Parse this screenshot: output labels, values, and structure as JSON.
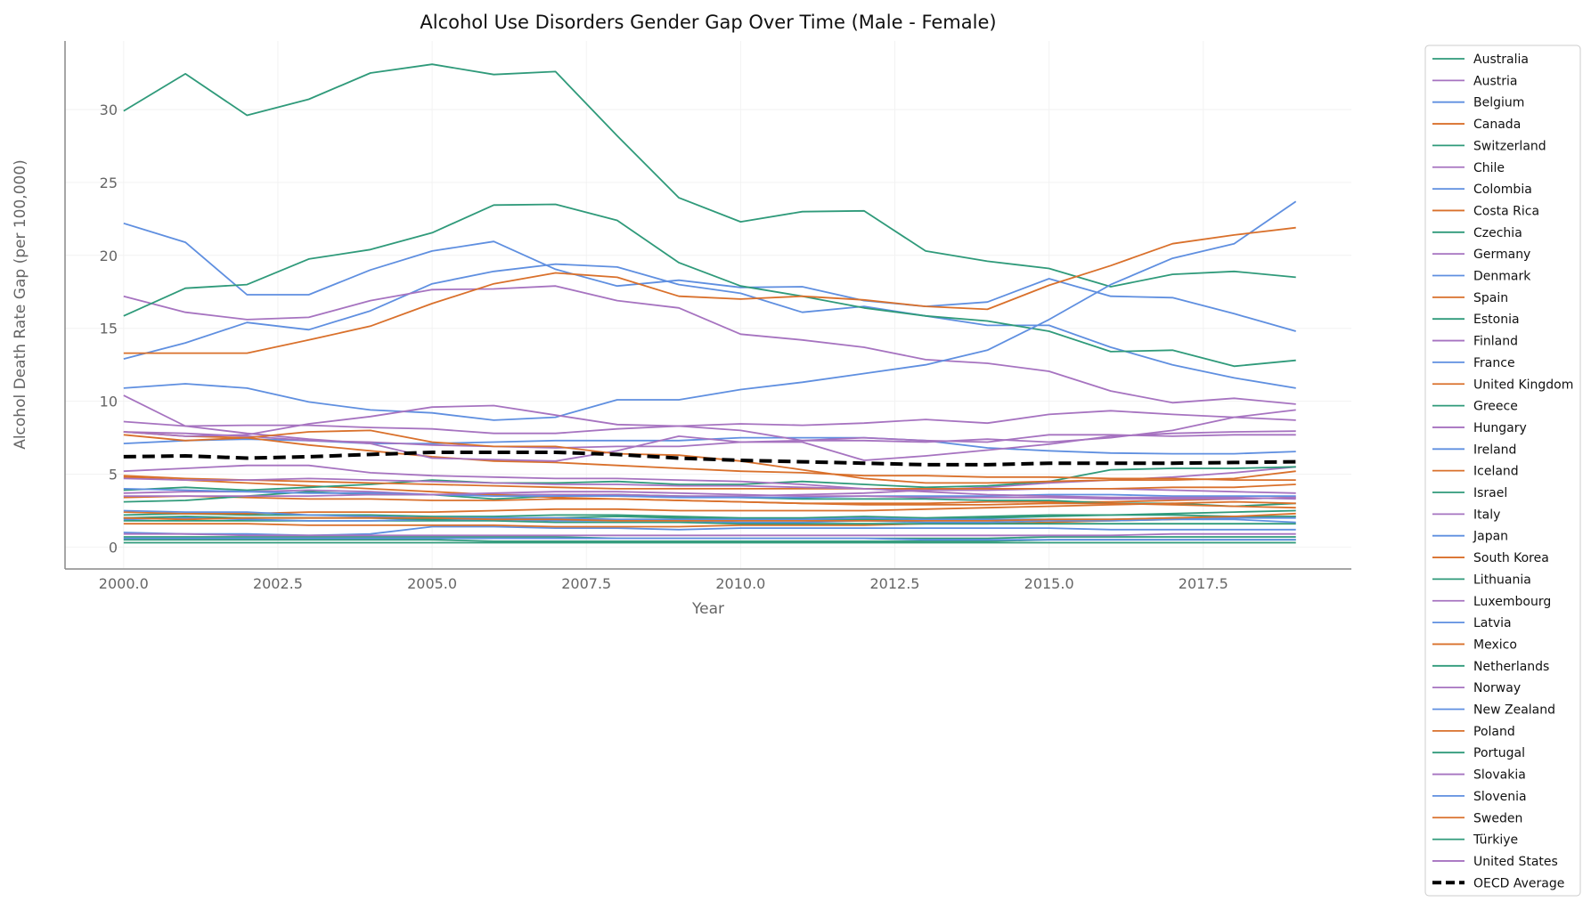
{
  "chart_data": {
    "type": "line",
    "title": "Alcohol Use Disorders Gender Gap Over Time (Male - Female)",
    "xlabel": "Year",
    "ylabel": "Alcohol Death Rate Gap (per 100,000)",
    "xlim": [
      1999.05,
      2019.9
    ],
    "ylim": [
      -1.5,
      34.7
    ],
    "x_ticks": [
      "2000.0",
      "2002.5",
      "2005.0",
      "2007.5",
      "2010.0",
      "2012.5",
      "2015.0",
      "2017.5"
    ],
    "y_ticks": [
      "0",
      "5",
      "10",
      "15",
      "20",
      "25",
      "30"
    ],
    "grid": true,
    "legend_position": "outside-right",
    "palette": [
      "#2f9a7a",
      "#a673c0",
      "#5f8fe0",
      "#d9702b"
    ],
    "x": [
      2000,
      2001,
      2002,
      2003,
      2004,
      2005,
      2006,
      2007,
      2008,
      2009,
      2010,
      2011,
      2012,
      2013,
      2014,
      2015,
      2016,
      2017,
      2018,
      2019
    ],
    "series": [
      {
        "name": "Australia",
        "values": [
          2.2,
          2.3,
          2.2,
          2.2,
          2.2,
          2.1,
          2.1,
          2.2,
          2.2,
          2.1,
          2.0,
          2.0,
          2.1,
          2.0,
          2.1,
          2.2,
          2.2,
          2.3,
          2.4,
          2.5
        ]
      },
      {
        "name": "Austria",
        "values": [
          8.6,
          8.3,
          8.35,
          8.35,
          8.2,
          8.1,
          7.8,
          7.8,
          8.1,
          8.3,
          8.45,
          8.35,
          8.5,
          8.75,
          8.5,
          9.1,
          9.35,
          9.1,
          8.9,
          8.7
        ]
      },
      {
        "name": "Belgium",
        "values": [
          7.1,
          7.3,
          7.4,
          7.3,
          7.1,
          7.1,
          7.2,
          7.3,
          7.3,
          7.3,
          7.5,
          7.5,
          7.5,
          7.3,
          6.8,
          6.6,
          6.45,
          6.4,
          6.4,
          6.55
        ]
      },
      {
        "name": "Canada",
        "values": [
          3.4,
          3.5,
          3.4,
          3.3,
          3.3,
          3.2,
          3.2,
          3.3,
          3.3,
          3.2,
          3.1,
          3.0,
          3.0,
          3.0,
          3.1,
          3.1,
          3.1,
          3.2,
          3.3,
          3.4
        ]
      },
      {
        "name": "Switzerland",
        "values": [
          3.1,
          3.2,
          3.5,
          3.8,
          3.6,
          3.6,
          3.3,
          3.5,
          3.6,
          3.5,
          3.4,
          3.3,
          3.3,
          3.3,
          3.2,
          3.2,
          3.0,
          3.0,
          2.8,
          3.0
        ]
      },
      {
        "name": "Chile",
        "values": [
          3.7,
          3.8,
          3.8,
          3.9,
          3.8,
          3.6,
          3.6,
          3.6,
          3.6,
          3.5,
          3.5,
          3.6,
          3.7,
          3.9,
          4.1,
          4.4,
          4.6,
          4.8,
          5.1,
          5.5
        ]
      },
      {
        "name": "Colombia",
        "values": [
          12.9,
          14.0,
          15.4,
          14.9,
          16.2,
          18.05,
          18.9,
          19.4,
          19.2,
          18.0,
          17.4,
          16.1,
          16.5,
          15.85,
          15.2,
          15.2,
          13.7,
          12.5,
          11.6,
          10.9
        ]
      },
      {
        "name": "Costa Rica",
        "values": [
          4.8,
          4.6,
          4.4,
          4.2,
          4.0,
          3.8,
          3.6,
          3.4,
          3.3,
          3.2,
          3.1,
          3.0,
          2.9,
          2.9,
          2.9,
          3.0,
          3.0,
          2.9,
          2.8,
          2.7
        ]
      },
      {
        "name": "Czechia",
        "values": [
          3.9,
          4.1,
          3.9,
          4.1,
          4.3,
          4.6,
          4.4,
          4.4,
          4.5,
          4.3,
          4.3,
          4.5,
          4.3,
          4.1,
          4.2,
          4.5,
          5.3,
          5.4,
          5.4,
          5.5
        ]
      },
      {
        "name": "Germany",
        "values": [
          5.2,
          5.4,
          5.6,
          5.6,
          5.1,
          4.9,
          4.8,
          4.7,
          4.7,
          4.6,
          4.5,
          4.3,
          4.0,
          3.9,
          3.9,
          4.0,
          4.0,
          3.9,
          3.8,
          3.7
        ]
      },
      {
        "name": "Denmark",
        "values": [
          22.2,
          20.9,
          17.3,
          17.3,
          19.0,
          20.3,
          20.95,
          19.05,
          17.9,
          18.3,
          17.8,
          17.85,
          16.9,
          16.5,
          16.8,
          18.4,
          17.2,
          17.1,
          16.0,
          14.8
        ]
      },
      {
        "name": "Spain",
        "values": [
          7.7,
          7.3,
          7.5,
          7.0,
          6.6,
          6.2,
          5.9,
          5.8,
          5.6,
          5.4,
          5.2,
          5.1,
          4.9,
          4.9,
          4.8,
          4.8,
          4.7,
          4.7,
          4.6,
          4.6
        ]
      },
      {
        "name": "Estonia",
        "values": [
          29.9,
          32.45,
          29.6,
          30.7,
          32.5,
          33.1,
          32.4,
          32.6,
          28.2,
          23.95,
          22.3,
          23.0,
          23.05,
          20.3,
          19.6,
          19.1,
          17.85,
          18.7,
          18.9,
          18.5
        ]
      },
      {
        "name": "Finland",
        "values": [
          10.4,
          8.3,
          7.8,
          7.4,
          7.1,
          6.1,
          6.0,
          5.9,
          6.6,
          7.6,
          7.2,
          7.3,
          7.5,
          7.3,
          7.2,
          7.7,
          7.7,
          7.6,
          7.7,
          7.7
        ]
      },
      {
        "name": "France",
        "values": [
          4.0,
          3.9,
          3.8,
          3.7,
          3.7,
          3.6,
          3.5,
          3.5,
          3.5,
          3.4,
          3.4,
          3.4,
          3.5,
          3.5,
          3.5,
          3.6,
          3.6,
          3.5,
          3.5,
          3.5
        ]
      },
      {
        "name": "United Kingdom",
        "values": [
          4.9,
          4.7,
          4.6,
          4.5,
          4.4,
          4.3,
          4.2,
          4.1,
          4.0,
          4.0,
          4.0,
          4.0,
          4.0,
          4.0,
          4.0,
          4.0,
          4.0,
          4.1,
          4.1,
          4.3
        ]
      },
      {
        "name": "Greece",
        "values": [
          0.7,
          0.7,
          0.7,
          0.7,
          0.7,
          0.7,
          0.7,
          0.7,
          0.6,
          0.6,
          0.6,
          0.6,
          0.6,
          0.6,
          0.6,
          0.7,
          0.7,
          0.7,
          0.7,
          0.7
        ]
      },
      {
        "name": "Hungary",
        "values": [
          17.2,
          16.1,
          15.6,
          15.75,
          16.9,
          17.65,
          17.7,
          17.9,
          16.9,
          16.4,
          14.6,
          14.2,
          13.7,
          12.85,
          12.6,
          12.05,
          10.7,
          9.9,
          10.2,
          9.8
        ]
      },
      {
        "name": "Ireland",
        "values": [
          1.0,
          0.9,
          0.9,
          0.8,
          0.9,
          1.4,
          1.4,
          1.3,
          1.3,
          1.2,
          1.3,
          1.3,
          1.3,
          1.3,
          1.3,
          1.3,
          1.2,
          1.2,
          1.2,
          1.2
        ]
      },
      {
        "name": "Iceland",
        "values": [
          1.6,
          1.6,
          1.6,
          1.5,
          1.5,
          1.5,
          1.5,
          1.4,
          1.4,
          1.4,
          1.5,
          1.5,
          1.5,
          1.6,
          1.6,
          1.7,
          1.8,
          1.9,
          2.0,
          2.1
        ]
      },
      {
        "name": "Israel",
        "values": [
          0.5,
          0.5,
          0.5,
          0.5,
          0.5,
          0.5,
          0.4,
          0.4,
          0.4,
          0.4,
          0.4,
          0.4,
          0.4,
          0.4,
          0.4,
          0.5,
          0.5,
          0.5,
          0.5,
          0.5
        ]
      },
      {
        "name": "Italy",
        "values": [
          7.9,
          7.8,
          7.6,
          7.3,
          7.2,
          7.0,
          6.9,
          6.8,
          6.9,
          6.9,
          7.2,
          7.2,
          5.95,
          6.25,
          6.65,
          7.05,
          7.6,
          7.8,
          7.9,
          7.95
        ]
      },
      {
        "name": "Japan",
        "values": [
          0.6,
          0.6,
          0.6,
          0.6,
          0.6,
          0.6,
          0.6,
          0.6,
          0.6,
          0.6,
          0.6,
          0.6,
          0.6,
          0.5,
          0.5,
          0.5,
          0.5,
          0.5,
          0.5,
          0.5
        ]
      },
      {
        "name": "South Korea",
        "values": [
          7.9,
          7.6,
          7.5,
          7.9,
          8.0,
          7.2,
          6.9,
          6.9,
          6.4,
          6.3,
          5.9,
          5.3,
          4.7,
          4.4,
          4.4,
          4.5,
          4.6,
          4.6,
          4.7,
          5.2
        ]
      },
      {
        "name": "Lithuania",
        "values": [
          15.85,
          17.75,
          18.0,
          19.75,
          20.4,
          21.55,
          23.45,
          23.5,
          22.4,
          19.5,
          17.9,
          17.2,
          16.4,
          15.85,
          15.5,
          14.8,
          13.4,
          13.5,
          12.4,
          12.8
        ]
      },
      {
        "name": "Luxembourg",
        "values": [
          4.7,
          4.6,
          4.6,
          4.7,
          4.6,
          4.5,
          4.4,
          4.3,
          4.3,
          4.2,
          4.2,
          4.1,
          4.0,
          3.8,
          3.6,
          3.5,
          3.4,
          3.4,
          3.4,
          3.3
        ]
      },
      {
        "name": "Latvia",
        "values": [
          10.9,
          11.2,
          10.9,
          9.95,
          9.4,
          9.2,
          8.7,
          8.9,
          10.1,
          10.1,
          10.8,
          11.3,
          11.9,
          12.5,
          13.5,
          15.6,
          18.0,
          19.8,
          20.8,
          23.7
        ]
      },
      {
        "name": "Mexico",
        "values": [
          13.3,
          13.3,
          13.3,
          14.2,
          15.15,
          16.7,
          18.05,
          18.8,
          18.5,
          17.2,
          17.0,
          17.2,
          16.95,
          16.5,
          16.3,
          17.95,
          19.3,
          20.8,
          21.4,
          21.9
        ]
      },
      {
        "name": "Netherlands",
        "values": [
          1.8,
          1.8,
          1.8,
          1.8,
          1.8,
          1.8,
          1.8,
          1.7,
          1.7,
          1.7,
          1.6,
          1.6,
          1.6,
          1.6,
          1.6,
          1.6,
          1.6,
          1.6,
          1.6,
          1.6
        ]
      },
      {
        "name": "Norway",
        "values": [
          0.9,
          0.9,
          0.8,
          0.8,
          0.8,
          0.8,
          0.8,
          0.8,
          0.8,
          0.8,
          0.8,
          0.8,
          0.8,
          0.8,
          0.8,
          0.8,
          0.8,
          0.9,
          0.9,
          0.9
        ]
      },
      {
        "name": "New Zealand",
        "values": [
          1.9,
          2.0,
          1.9,
          1.8,
          1.8,
          1.9,
          1.9,
          1.8,
          1.8,
          1.8,
          1.7,
          1.7,
          1.8,
          1.7,
          1.7,
          1.8,
          1.8,
          1.9,
          1.9,
          1.7
        ]
      },
      {
        "name": "Poland",
        "values": [
          2.4,
          2.3,
          2.3,
          2.4,
          2.4,
          2.4,
          2.5,
          2.6,
          2.6,
          2.5,
          2.5,
          2.5,
          2.5,
          2.6,
          2.7,
          2.8,
          2.9,
          3.0,
          3.1,
          3.0
        ]
      },
      {
        "name": "Portugal",
        "values": [
          2.0,
          2.1,
          2.0,
          2.0,
          2.0,
          1.9,
          2.0,
          2.0,
          2.1,
          2.0,
          1.9,
          1.9,
          1.9,
          1.9,
          2.0,
          2.1,
          2.2,
          2.2,
          2.1,
          2.1
        ]
      },
      {
        "name": "Slovakia",
        "values": [
          7.9,
          7.6,
          7.7,
          8.45,
          8.95,
          9.6,
          9.7,
          9.05,
          8.4,
          8.3,
          8.0,
          7.3,
          7.3,
          7.2,
          7.4,
          7.2,
          7.5,
          8.0,
          8.9,
          9.4
        ]
      },
      {
        "name": "Slovenia",
        "values": [
          2.5,
          2.4,
          2.4,
          2.2,
          2.1,
          2.0,
          2.0,
          2.0,
          1.9,
          1.9,
          1.9,
          1.9,
          2.0,
          1.9,
          1.9,
          1.9,
          1.9,
          2.0,
          2.0,
          2.0
        ]
      },
      {
        "name": "Sweden",
        "values": [
          2.0,
          1.9,
          2.0,
          2.0,
          2.0,
          2.0,
          1.9,
          1.9,
          1.8,
          1.8,
          1.8,
          1.8,
          1.8,
          1.8,
          1.8,
          1.9,
          1.9,
          2.0,
          2.1,
          2.3
        ]
      },
      {
        "name": "Türkiye",
        "values": [
          0.3,
          0.3,
          0.3,
          0.3,
          0.3,
          0.3,
          0.3,
          0.3,
          0.3,
          0.3,
          0.3,
          0.3,
          0.3,
          0.3,
          0.3,
          0.3,
          0.3,
          0.3,
          0.3,
          0.3
        ]
      },
      {
        "name": "United States",
        "values": [
          3.5,
          3.5,
          3.5,
          3.5,
          3.6,
          3.6,
          3.7,
          3.8,
          3.8,
          3.7,
          3.6,
          3.5,
          3.5,
          3.4,
          3.4,
          3.4,
          3.3,
          3.3,
          3.3,
          3.4
        ]
      }
    ],
    "average": {
      "name": "OECD Average",
      "color": "#000000",
      "style": "dashed",
      "values": [
        6.2,
        6.25,
        6.1,
        6.2,
        6.35,
        6.5,
        6.5,
        6.5,
        6.35,
        6.1,
        5.95,
        5.85,
        5.75,
        5.65,
        5.65,
        5.75,
        5.75,
        5.75,
        5.8,
        5.85
      ]
    }
  }
}
